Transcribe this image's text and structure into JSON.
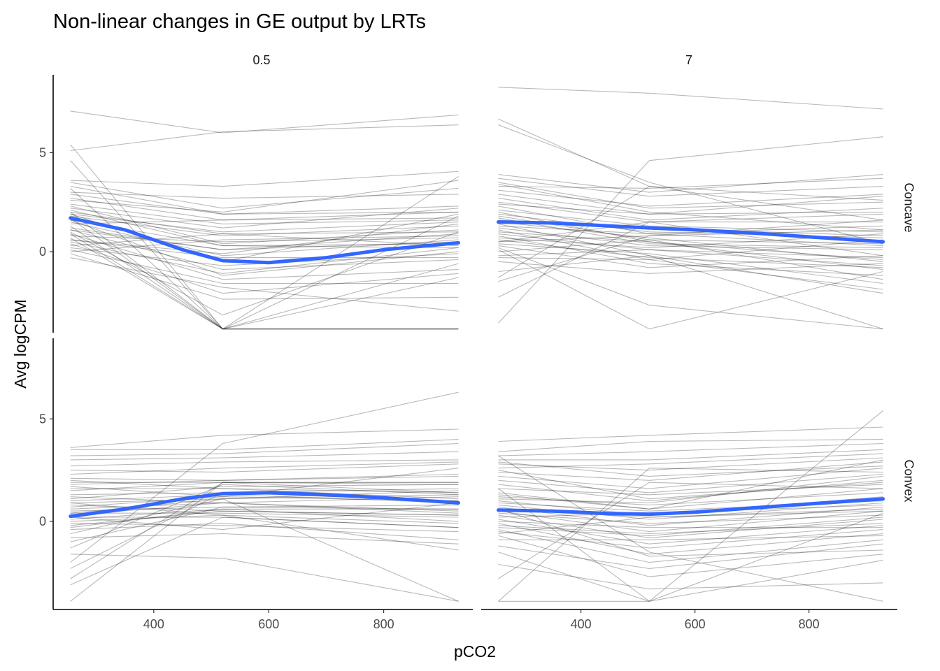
{
  "chart_data": {
    "type": "line",
    "title": "Non-linear changes in GE output by LRTs",
    "xlabel": "pCO2",
    "ylabel": "Avg logCPM",
    "col_facets": [
      "0.5",
      "7"
    ],
    "row_facets": [
      "Concave",
      "Convex"
    ],
    "x_ticks": [
      400,
      600,
      800
    ],
    "y_ticks": [
      0,
      5
    ],
    "xlim": [
      225,
      955
    ],
    "ylim": [
      -4.3,
      9.0
    ],
    "grid": false,
    "x_levels": {
      "0.5": [
        255,
        520,
        930
      ],
      "7": [
        255,
        520,
        930
      ]
    },
    "smooth_color": "#3366FF",
    "line_color": "#000000",
    "panels": [
      {
        "col": "0.5",
        "row": "Concave",
        "smooth": {
          "x": [
            255,
            350,
            450,
            520,
            600,
            700,
            800,
            930
          ],
          "y": [
            1.7,
            1.1,
            0.1,
            -0.45,
            -0.55,
            -0.3,
            0.1,
            0.45
          ]
        },
        "lines": [
          [
            7.1,
            6.0,
            6.9
          ],
          [
            5.1,
            6.05,
            6.4
          ],
          [
            5.4,
            -3.9,
            -3.9
          ],
          [
            4.6,
            -3.9,
            1.8
          ],
          [
            3.6,
            3.3,
            4.05
          ],
          [
            3.5,
            2.2,
            3.2
          ],
          [
            3.2,
            -3.9,
            3.8
          ],
          [
            3.0,
            2.7,
            2.9
          ],
          [
            2.9,
            1.9,
            2.3
          ],
          [
            2.7,
            1.6,
            2.0
          ],
          [
            2.6,
            2.0,
            3.6
          ],
          [
            2.4,
            1.4,
            1.6
          ],
          [
            2.3,
            0.4,
            1.1
          ],
          [
            2.2,
            1.2,
            2.2
          ],
          [
            2.1,
            0.3,
            0.2
          ],
          [
            2.0,
            -3.9,
            -3.9
          ],
          [
            1.9,
            -0.5,
            1.9
          ],
          [
            1.8,
            0.8,
            1.3
          ],
          [
            1.7,
            -3.9,
            -0.6
          ],
          [
            1.6,
            0.3,
            0.4
          ],
          [
            1.5,
            -0.2,
            0.6
          ],
          [
            1.4,
            1.6,
            1.7
          ],
          [
            1.3,
            -3.9,
            -3.9
          ],
          [
            1.2,
            0.1,
            0.9
          ],
          [
            1.1,
            -0.9,
            -0.4
          ],
          [
            1.0,
            -3.2,
            1.0
          ],
          [
            0.9,
            -1.4,
            -0.9
          ],
          [
            0.8,
            0.5,
            0.7
          ],
          [
            0.7,
            -3.9,
            -3.9
          ],
          [
            0.6,
            -0.1,
            1.4
          ],
          [
            0.5,
            -1.1,
            0.2
          ],
          [
            0.4,
            -2.1,
            -1.1
          ],
          [
            0.3,
            0.9,
            0.3
          ],
          [
            0.2,
            -0.7,
            -0.1
          ],
          [
            0.1,
            -1.6,
            -1.6
          ],
          [
            0.0,
            0.6,
            0.8
          ],
          [
            -0.1,
            -2.4,
            -2.3
          ],
          [
            -0.3,
            -1.8,
            -3.0
          ],
          [
            0.6,
            -0.3,
            -0.3
          ],
          [
            1.1,
            0.1,
            0.5
          ],
          [
            2.0,
            0.9,
            1.0
          ],
          [
            1.6,
            -1.2,
            0.0
          ],
          [
            3.3,
            1.9,
            2.0
          ],
          [
            0.9,
            -3.9,
            -1.3
          ],
          [
            1.9,
            1.0,
            1.5
          ]
        ]
      },
      {
        "col": "7",
        "row": "Concave",
        "smooth": {
          "x": [
            255,
            350,
            450,
            520,
            600,
            700,
            800,
            930
          ],
          "y": [
            1.5,
            1.45,
            1.3,
            1.2,
            1.1,
            0.95,
            0.75,
            0.5
          ]
        },
        "lines": [
          [
            8.3,
            8.0,
            7.2
          ],
          [
            6.7,
            3.3,
            1.6
          ],
          [
            6.4,
            3.5,
            0.4
          ],
          [
            3.9,
            3.0,
            3.9
          ],
          [
            3.7,
            2.8,
            3.3
          ],
          [
            3.5,
            2.2,
            2.5
          ],
          [
            3.3,
            3.2,
            3.7
          ],
          [
            3.1,
            2.3,
            2.9
          ],
          [
            2.9,
            1.9,
            2.0
          ],
          [
            2.7,
            1.6,
            2.2
          ],
          [
            2.5,
            1.5,
            1.5
          ],
          [
            2.3,
            0.9,
            1.3
          ],
          [
            2.1,
            1.3,
            1.0
          ],
          [
            2.0,
            0.5,
            -0.4
          ],
          [
            1.9,
            1.0,
            0.7
          ],
          [
            1.7,
            0.4,
            0.2
          ],
          [
            1.6,
            1.2,
            0.8
          ],
          [
            1.5,
            0.7,
            -0.5
          ],
          [
            1.4,
            -0.2,
            -3.9
          ],
          [
            1.3,
            0.9,
            0.3
          ],
          [
            1.2,
            0.3,
            0.1
          ],
          [
            1.1,
            -0.4,
            0.6
          ],
          [
            1.0,
            0.5,
            -0.9
          ],
          [
            0.9,
            0.1,
            -0.3
          ],
          [
            0.8,
            -0.6,
            -1.2
          ],
          [
            0.7,
            0.2,
            0.9
          ],
          [
            0.6,
            -0.3,
            -0.8
          ],
          [
            0.5,
            0.8,
            1.1
          ],
          [
            0.4,
            -0.1,
            -1.6
          ],
          [
            0.3,
            -0.8,
            -0.2
          ],
          [
            0.2,
            -2.7,
            -3.9
          ],
          [
            0.1,
            -3.9,
            -1.0
          ],
          [
            0.0,
            0.6,
            0.4
          ],
          [
            -0.3,
            -0.4,
            -1.9
          ],
          [
            -0.5,
            -1.1,
            -0.6
          ],
          [
            -1.0,
            -0.2,
            -2.1
          ],
          [
            -1.5,
            0.8,
            1.6
          ],
          [
            -2.3,
            1.5,
            -0.2
          ],
          [
            -3.6,
            4.6,
            5.8
          ],
          [
            -1.3,
            3.3,
            2.6
          ],
          [
            2.4,
            1.9,
            2.8
          ],
          [
            1.8,
            0.6,
            -1.4
          ],
          [
            0.5,
            1.5,
            1.9
          ],
          [
            3.4,
            2.0,
            1.1
          ],
          [
            -0.2,
            0.1,
            -0.7
          ]
        ]
      },
      {
        "col": "0.5",
        "row": "Convex",
        "smooth": {
          "x": [
            255,
            350,
            450,
            520,
            600,
            700,
            800,
            930
          ],
          "y": [
            0.25,
            0.6,
            1.1,
            1.35,
            1.4,
            1.3,
            1.15,
            0.9
          ]
        },
        "lines": [
          [
            3.6,
            4.2,
            4.5
          ],
          [
            3.5,
            3.5,
            4.0
          ],
          [
            3.2,
            3.3,
            3.8
          ],
          [
            3.0,
            3.1,
            3.4
          ],
          [
            2.7,
            2.9,
            3.0
          ],
          [
            2.5,
            2.4,
            2.8
          ],
          [
            2.3,
            2.6,
            2.9
          ],
          [
            2.1,
            2.0,
            2.2
          ],
          [
            1.9,
            1.9,
            1.8
          ],
          [
            1.8,
            2.0,
            2.3
          ],
          [
            1.6,
            1.6,
            1.4
          ],
          [
            1.5,
            1.9,
            1.9
          ],
          [
            1.3,
            1.4,
            1.6
          ],
          [
            1.1,
            1.7,
            1.8
          ],
          [
            1.0,
            1.3,
            0.9
          ],
          [
            0.9,
            1.1,
            1.3
          ],
          [
            0.8,
            0.5,
            0.3
          ],
          [
            0.7,
            1.2,
            1.0
          ],
          [
            0.6,
            0.9,
            0.5
          ],
          [
            0.5,
            0.7,
            0.8
          ],
          [
            0.4,
            0.4,
            0.2
          ],
          [
            0.3,
            0.9,
            1.2
          ],
          [
            0.2,
            0.2,
            -0.3
          ],
          [
            0.1,
            0.6,
            0.6
          ],
          [
            0.0,
            0.3,
            -0.1
          ],
          [
            -0.1,
            -0.2,
            -0.5
          ],
          [
            -0.2,
            0.5,
            0.3
          ],
          [
            -0.4,
            -0.1,
            -0.9
          ],
          [
            -0.6,
            1.1,
            1.5
          ],
          [
            -0.8,
            -0.6,
            -1.1
          ],
          [
            -1.0,
            0.7,
            0.6
          ],
          [
            -1.3,
            1.8,
            1.3
          ],
          [
            -1.6,
            -1.8,
            -3.9
          ],
          [
            -2.0,
            3.8,
            6.3
          ],
          [
            -2.3,
            1.4,
            1.0
          ],
          [
            -2.8,
            1.9,
            1.9
          ],
          [
            -3.1,
            0.2,
            -0.3
          ],
          [
            -3.9,
            1.9,
            1.4
          ],
          [
            0.4,
            1.1,
            -3.9
          ],
          [
            1.2,
            0.9,
            0.4
          ],
          [
            2.0,
            1.6,
            1.1
          ],
          [
            0.9,
            0.3,
            -1.4
          ],
          [
            -0.3,
            0.6,
            0.0
          ],
          [
            1.7,
            1.2,
            2.6
          ],
          [
            0.2,
            -0.4,
            0.9
          ]
        ]
      },
      {
        "col": "7",
        "row": "Convex",
        "smooth": {
          "x": [
            255,
            350,
            450,
            520,
            600,
            700,
            800,
            930
          ],
          "y": [
            0.55,
            0.5,
            0.38,
            0.35,
            0.45,
            0.65,
            0.85,
            1.1
          ]
        },
        "lines": [
          [
            3.9,
            4.2,
            4.6
          ],
          [
            3.4,
            3.9,
            4.0
          ],
          [
            3.2,
            3.4,
            3.8
          ],
          [
            3.0,
            3.0,
            3.5
          ],
          [
            2.8,
            2.5,
            3.1
          ],
          [
            2.6,
            2.8,
            3.3
          ],
          [
            2.4,
            2.0,
            2.9
          ],
          [
            2.2,
            1.6,
            2.6
          ],
          [
            2.0,
            1.4,
            2.3
          ],
          [
            1.8,
            1.0,
            2.0
          ],
          [
            1.6,
            1.3,
            1.8
          ],
          [
            1.4,
            0.6,
            1.6
          ],
          [
            1.2,
            0.8,
            1.4
          ],
          [
            1.0,
            0.3,
            1.2
          ],
          [
            0.9,
            0.5,
            1.0
          ],
          [
            0.8,
            0.1,
            0.9
          ],
          [
            0.7,
            -0.2,
            0.7
          ],
          [
            0.6,
            0.2,
            0.6
          ],
          [
            0.5,
            -0.5,
            0.5
          ],
          [
            0.4,
            -0.1,
            0.3
          ],
          [
            0.3,
            -0.8,
            0.1
          ],
          [
            0.2,
            0.4,
            0.8
          ],
          [
            0.1,
            -1.1,
            -0.2
          ],
          [
            0.0,
            -0.3,
            -0.3
          ],
          [
            -0.1,
            -1.6,
            -0.6
          ],
          [
            -0.2,
            -0.6,
            -0.1
          ],
          [
            -0.4,
            -2.0,
            -0.9
          ],
          [
            -0.5,
            -1.3,
            -0.4
          ],
          [
            -0.7,
            -2.7,
            -1.6
          ],
          [
            -0.9,
            -0.9,
            -0.7
          ],
          [
            -1.2,
            -2.3,
            -1.1
          ],
          [
            -1.5,
            -3.9,
            -1.9
          ],
          [
            -2.1,
            -3.3,
            -3.0
          ],
          [
            -3.9,
            2.6,
            2.4
          ],
          [
            -3.9,
            -3.9,
            5.4
          ],
          [
            -2.8,
            1.9,
            1.6
          ],
          [
            3.2,
            -1.5,
            -3.9
          ],
          [
            1.6,
            -3.9,
            0.4
          ],
          [
            1.1,
            0.9,
            2.2
          ],
          [
            -0.3,
            -0.7,
            0.2
          ],
          [
            2.5,
            1.1,
            1.9
          ],
          [
            0.6,
            -1.7,
            -1.4
          ],
          [
            1.3,
            0.6,
            3.0
          ],
          [
            -0.6,
            0.2,
            0.5
          ],
          [
            2.9,
            2.2,
            2.7
          ]
        ]
      }
    ]
  }
}
